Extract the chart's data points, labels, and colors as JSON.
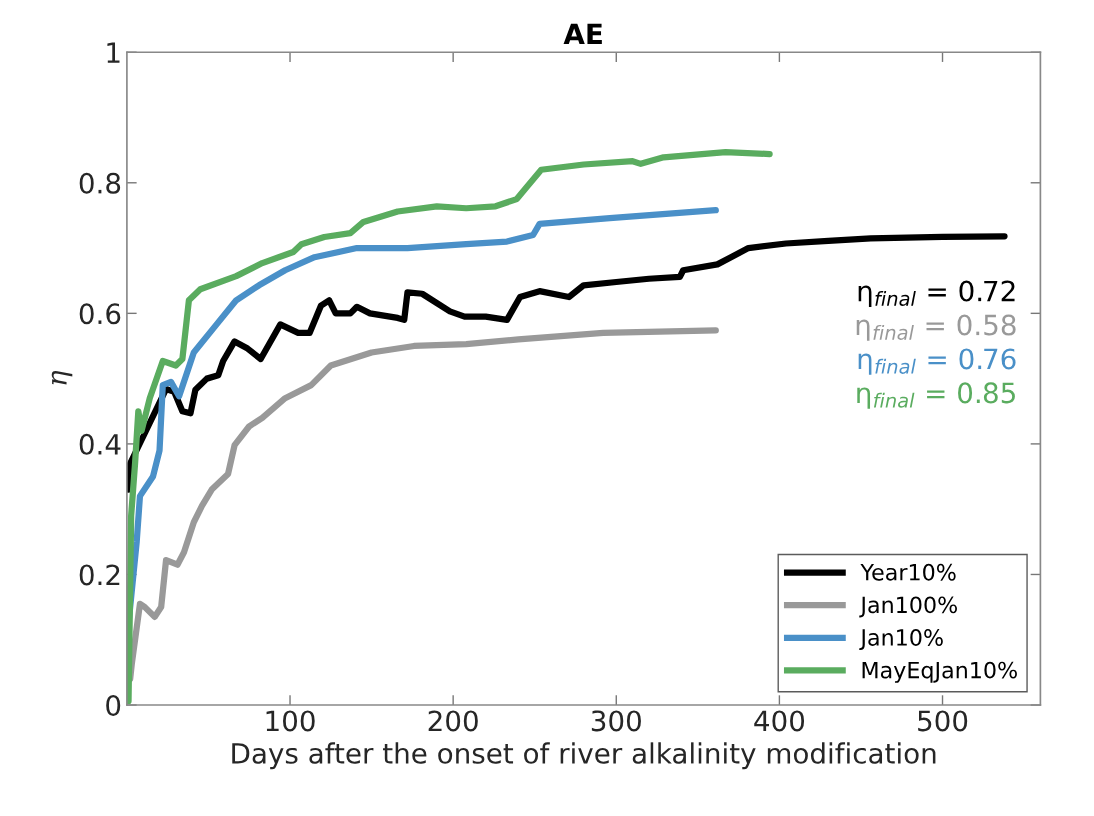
{
  "chart_data": {
    "type": "line",
    "title": "AE",
    "xlabel": "Days after the onset of river alkalinity modification",
    "ylabel": "η",
    "xlim": [
      0,
      560
    ],
    "xticks": [
      100,
      200,
      300,
      400,
      500
    ],
    "ylim": [
      0,
      1
    ],
    "yticks": [
      0,
      0.2,
      0.4,
      0.6,
      0.8,
      1
    ],
    "grid": false,
    "legend": "bottom right",
    "marker": "none",
    "line_style": "solid",
    "annotations": [
      "η$_{final}$ = 0.72",
      "η$_{final}$ = 0.58",
      "η$_{final}$ = 0.76",
      "η$_{final}$ = 0.85"
    ],
    "series": [
      {
        "name": "Year10%",
        "color": "#000000",
        "x": [
          1,
          2,
          24,
          29,
          34,
          39,
          42,
          49,
          56,
          59,
          66,
          74,
          82,
          94,
          105,
          112,
          119,
          124,
          128,
          137,
          141,
          149,
          166,
          170,
          172,
          181,
          198,
          207,
          220,
          233,
          241,
          253,
          271,
          280,
          300,
          320,
          339,
          341,
          362,
          381,
          404,
          430,
          456,
          500,
          538
        ],
        "values": [
          0.33,
          0.37,
          0.484,
          0.48,
          0.45,
          0.447,
          0.483,
          0.5,
          0.505,
          0.527,
          0.557,
          0.546,
          0.53,
          0.583,
          0.57,
          0.57,
          0.612,
          0.62,
          0.6,
          0.6,
          0.61,
          0.6,
          0.593,
          0.59,
          0.632,
          0.63,
          0.603,
          0.595,
          0.595,
          0.59,
          0.625,
          0.634,
          0.625,
          0.643,
          0.648,
          0.653,
          0.656,
          0.666,
          0.675,
          0.7,
          0.707,
          0.711,
          0.715,
          0.717,
          0.718
        ]
      },
      {
        "name": "Jan100%",
        "color": "#999999",
        "x": [
          2,
          3,
          8,
          11,
          17,
          21,
          24,
          31,
          35,
          41,
          46,
          52,
          62,
          66,
          75,
          83,
          97,
          113,
          125,
          150,
          176,
          208,
          240,
          292,
          361
        ],
        "values": [
          0.04,
          0.063,
          0.155,
          0.15,
          0.135,
          0.15,
          0.222,
          0.215,
          0.234,
          0.28,
          0.305,
          0.33,
          0.354,
          0.398,
          0.427,
          0.44,
          0.47,
          0.49,
          0.52,
          0.54,
          0.55,
          0.553,
          0.56,
          0.57,
          0.574
        ]
      },
      {
        "name": "Jan10%",
        "color": "#4a90c8",
        "x": [
          0,
          6,
          8,
          16,
          20,
          22,
          27,
          32,
          41,
          54,
          67,
          81,
          97,
          115,
          141,
          172,
          208,
          233,
          249,
          253,
          296,
          361
        ],
        "values": [
          0.1,
          0.25,
          0.32,
          0.35,
          0.39,
          0.49,
          0.495,
          0.473,
          0.54,
          0.58,
          0.62,
          0.643,
          0.666,
          0.686,
          0.7,
          0.7,
          0.706,
          0.71,
          0.72,
          0.737,
          0.746,
          0.758
        ]
      },
      {
        "name": "MayEqJan10%",
        "color": "#5aac5f",
        "x": [
          1,
          2.6,
          5,
          7,
          9,
          14,
          22,
          30,
          34,
          38,
          45,
          67,
          83,
          102,
          107,
          121,
          137,
          145,
          166,
          190,
          208,
          226,
          239,
          245,
          254,
          280,
          310,
          315,
          329,
          367,
          394
        ],
        "values": [
          0.006,
          0.29,
          0.37,
          0.45,
          0.42,
          0.47,
          0.527,
          0.52,
          0.53,
          0.62,
          0.637,
          0.657,
          0.677,
          0.694,
          0.706,
          0.717,
          0.723,
          0.74,
          0.756,
          0.764,
          0.761,
          0.764,
          0.775,
          0.793,
          0.82,
          0.828,
          0.833,
          0.829,
          0.839,
          0.847,
          0.844
        ]
      }
    ]
  }
}
